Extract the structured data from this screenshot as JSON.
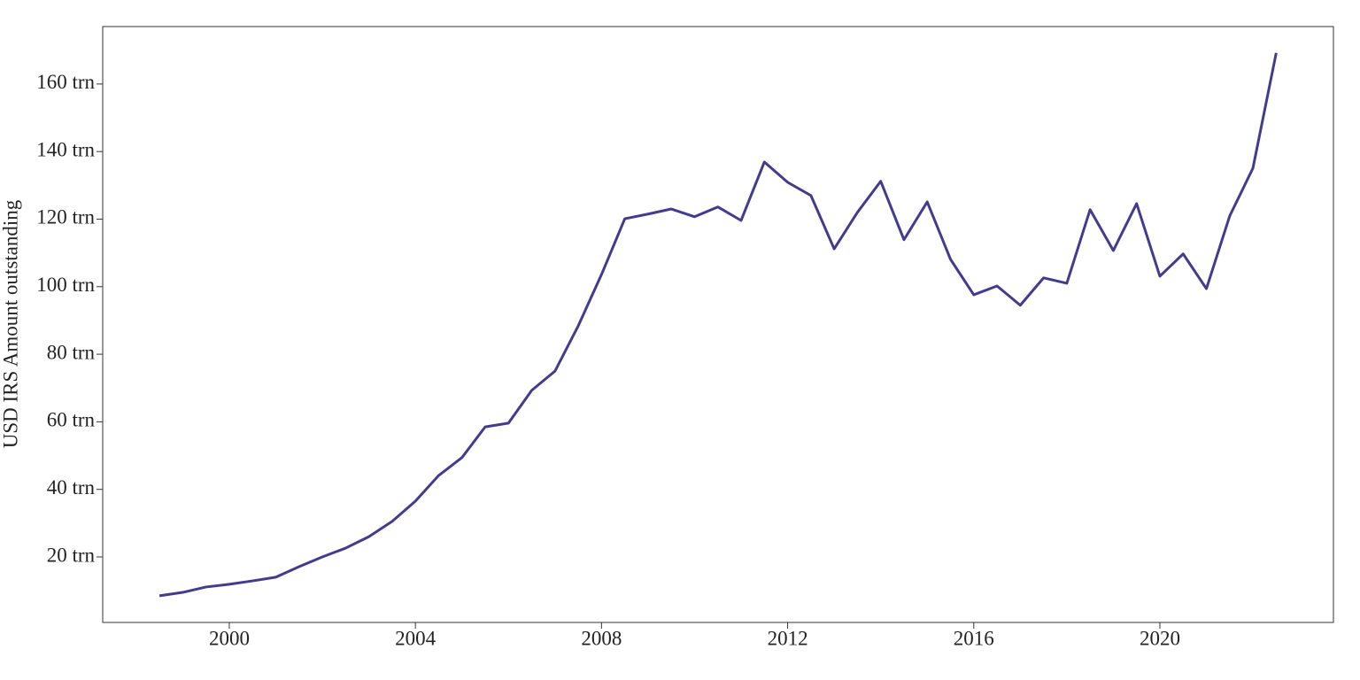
{
  "chart_data": {
    "type": "line",
    "y_label": "USD IRS Amount outstanding",
    "x": [
      1998.5,
      1999,
      1999.5,
      2000,
      2000.5,
      2001,
      2001.5,
      2002,
      2002.5,
      2003,
      2003.5,
      2004,
      2004.5,
      2005,
      2005.5,
      2006,
      2006.5,
      2007,
      2007.5,
      2008,
      2008.5,
      2009,
      2009.5,
      2010,
      2010.5,
      2011,
      2011.5,
      2012,
      2012.5,
      2013,
      2013.5,
      2014,
      2014.5,
      2015,
      2015.5,
      2016,
      2016.5,
      2017,
      2017.5,
      2018,
      2018.5,
      2019,
      2019.5,
      2020,
      2020.5,
      2021,
      2021.5,
      2022,
      2022.5
    ],
    "series": [
      {
        "color": "#433b8e",
        "values": [
          8.5,
          9.5,
          11.1,
          11.9,
          12.9,
          14.0,
          17.1,
          20.0,
          22.6,
          26.0,
          30.5,
          36.5,
          44.1,
          49.4,
          58.5,
          59.6,
          69.3,
          75.0,
          88.4,
          103.6,
          120.1,
          121.5,
          123.0,
          120.7,
          123.6,
          119.6,
          136.9,
          130.9,
          127.0,
          111.2,
          122.0,
          131.2,
          113.9,
          125.1,
          108.1,
          97.6,
          100.2,
          94.5,
          102.6,
          101.0,
          122.8,
          110.7,
          124.6,
          103.1,
          109.7,
          99.4,
          120.9,
          135.1,
          169.2
        ]
      }
    ],
    "xlim": [
      1997.28,
      2023.73
    ],
    "xticks": [
      2000,
      2004,
      2008,
      2012,
      2016,
      2020
    ],
    "ylim": [
      0.6,
      177
    ],
    "yticks": [
      {
        "value": 20,
        "label": "20 trn"
      },
      {
        "value": 40,
        "label": "40 trn"
      },
      {
        "value": 60,
        "label": "60 trn"
      },
      {
        "value": 80,
        "label": "80 trn"
      },
      {
        "value": 100,
        "label": "100 trn"
      },
      {
        "value": 120,
        "label": "120 trn"
      },
      {
        "value": 140,
        "label": "140 trn"
      },
      {
        "value": 160,
        "label": "160 trn"
      }
    ],
    "grid": false
  }
}
